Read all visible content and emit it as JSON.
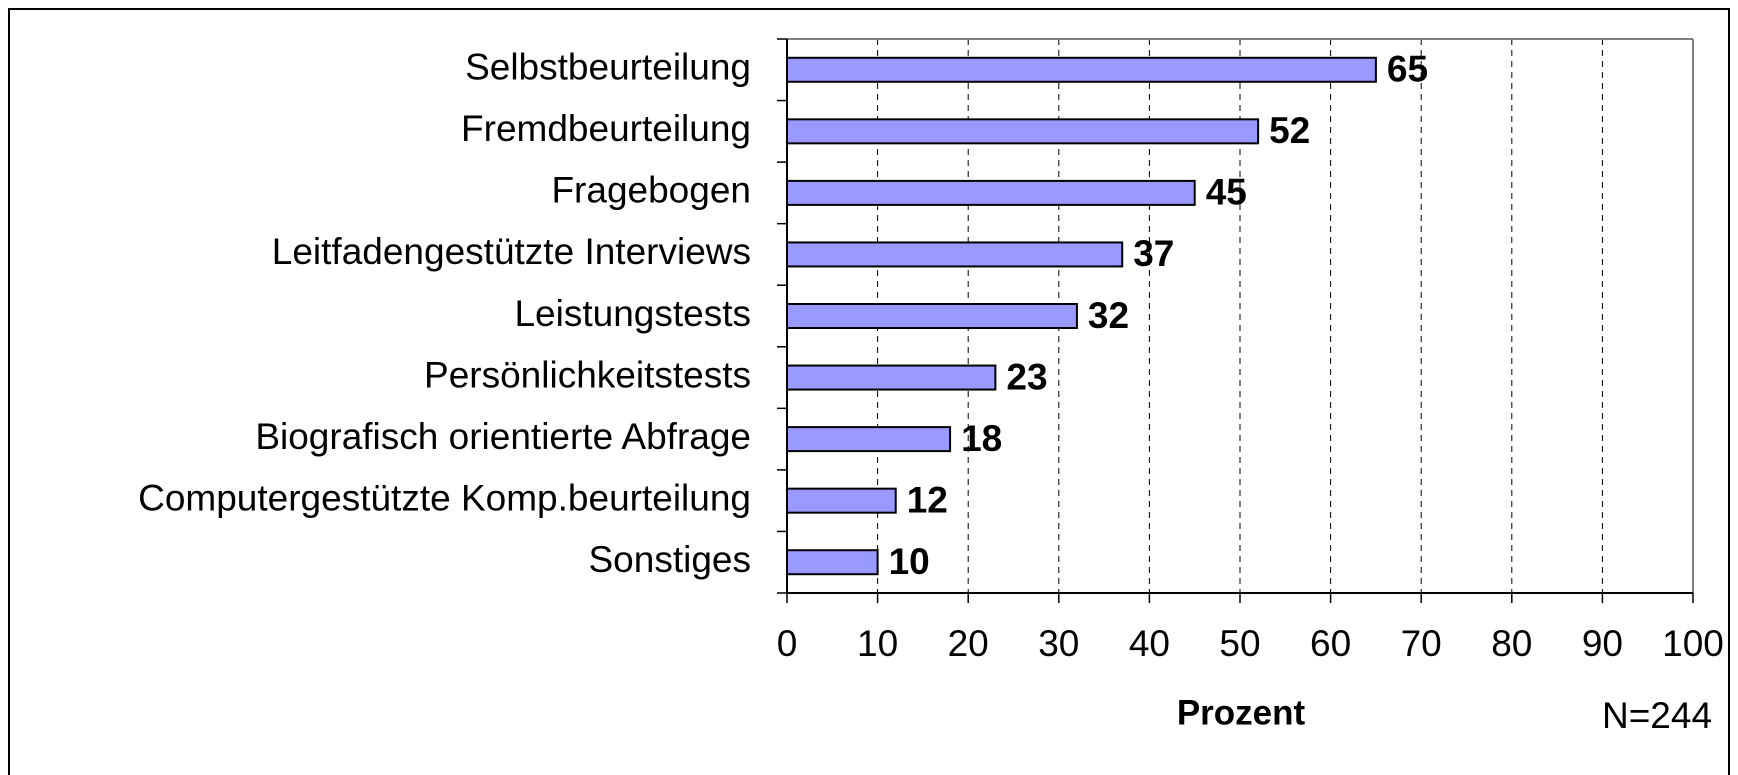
{
  "chart_data": {
    "type": "barh",
    "categories": [
      "Selbstbeurteilung",
      "Fremdbeurteilung",
      "Fragebogen",
      "Leitfadengestützte Interviews",
      "Leistungstests",
      "Persönlichkeitstests",
      "Biografisch orientierte Abfrage",
      "Computergestützte Komp.beurteilung",
      "Sonstiges"
    ],
    "values": [
      65,
      52,
      45,
      37,
      32,
      23,
      18,
      12,
      10
    ],
    "color": "#9999ff",
    "xlim": [
      0,
      100
    ],
    "xticks": [
      0,
      10,
      20,
      30,
      40,
      50,
      60,
      70,
      80,
      90,
      100
    ],
    "grid": true,
    "xlabel": "Prozent",
    "annotation": "N=244"
  }
}
